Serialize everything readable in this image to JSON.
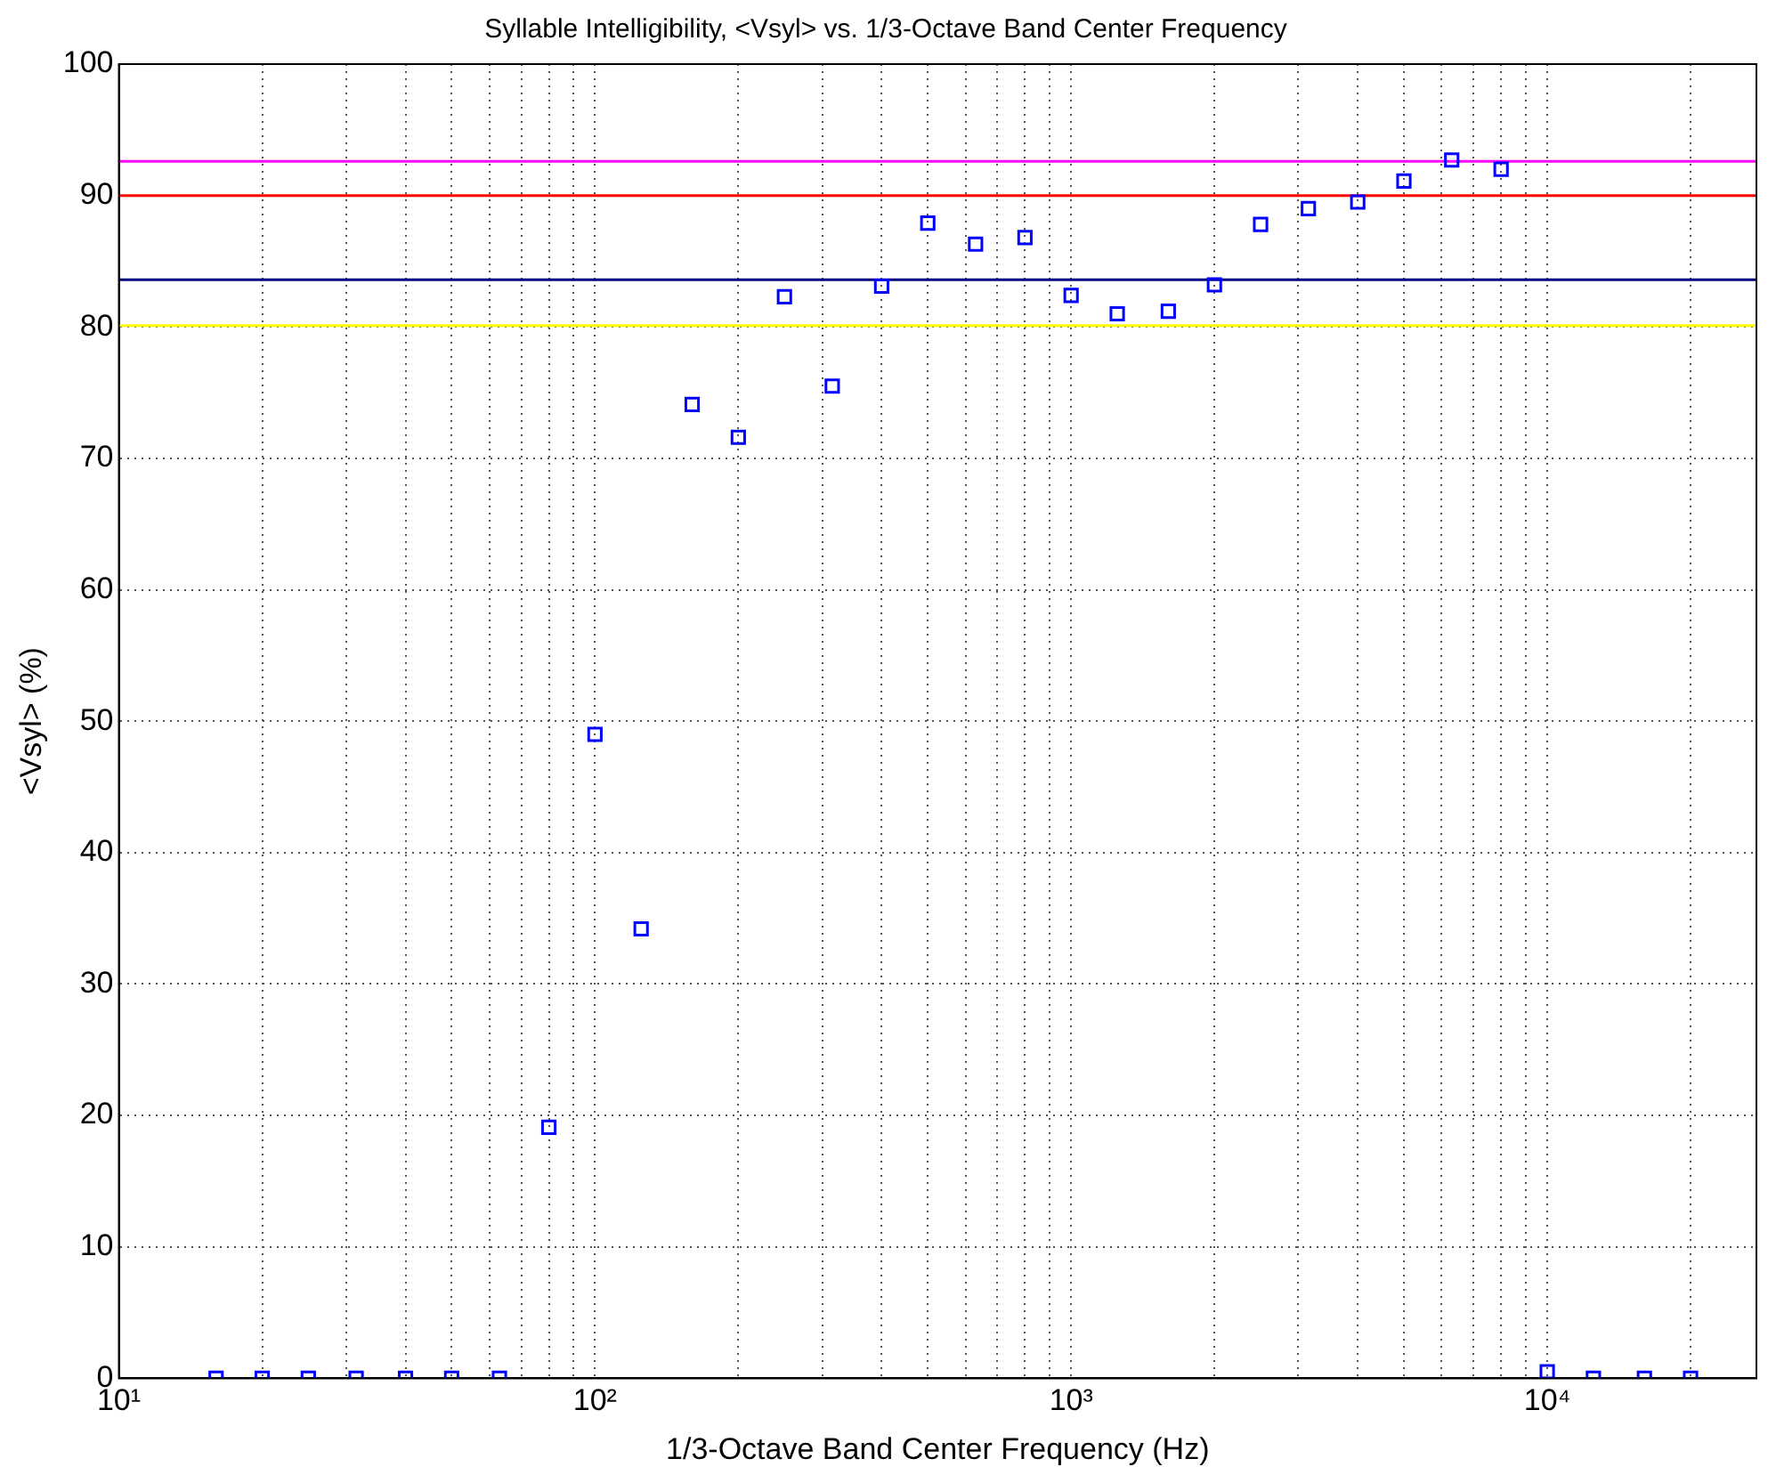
{
  "chart_data": {
    "type": "scatter",
    "title": "Syllable Intelligibility, <Vsyl> vs. 1/3-Octave Band Center Frequency",
    "xlabel": "1/3-Octave Band Center Frequency (Hz)",
    "ylabel": "<Vsyl> (%)",
    "log": "x",
    "grid": true,
    "marker": "square",
    "legend": false,
    "xlim": [
      10,
      27500
    ],
    "xticks": [
      {
        "value": 10,
        "label": "10¹"
      },
      {
        "value": 20,
        "label": null
      },
      {
        "value": 30,
        "label": null
      },
      {
        "value": 40,
        "label": null
      },
      {
        "value": 50,
        "label": null
      },
      {
        "value": 60,
        "label": null
      },
      {
        "value": 70,
        "label": null
      },
      {
        "value": 80,
        "label": null
      },
      {
        "value": 90,
        "label": null
      },
      {
        "value": 100,
        "label": "10²"
      },
      {
        "value": 200,
        "label": null
      },
      {
        "value": 300,
        "label": null
      },
      {
        "value": 400,
        "label": null
      },
      {
        "value": 500,
        "label": null
      },
      {
        "value": 600,
        "label": null
      },
      {
        "value": 700,
        "label": null
      },
      {
        "value": 800,
        "label": null
      },
      {
        "value": 900,
        "label": null
      },
      {
        "value": 1000,
        "label": "10³"
      },
      {
        "value": 2000,
        "label": null
      },
      {
        "value": 3000,
        "label": null
      },
      {
        "value": 4000,
        "label": null
      },
      {
        "value": 5000,
        "label": null
      },
      {
        "value": 6000,
        "label": null
      },
      {
        "value": 7000,
        "label": null
      },
      {
        "value": 8000,
        "label": null
      },
      {
        "value": 9000,
        "label": null
      },
      {
        "value": 10000,
        "label": "10⁴"
      },
      {
        "value": 20000,
        "label": null
      }
    ],
    "ylim": [
      0,
      100
    ],
    "yticks": [
      0,
      10,
      20,
      30,
      40,
      50,
      60,
      70,
      80,
      90,
      100
    ],
    "x": [
      16,
      20,
      25,
      31.5,
      40,
      50,
      63,
      80,
      100,
      125,
      160,
      200,
      250,
      315,
      400,
      500,
      630,
      800,
      1000,
      1250,
      1600,
      2000,
      2500,
      3150,
      4000,
      5000,
      6300,
      8000,
      10000,
      12500,
      16000,
      20000
    ],
    "series": [
      {
        "color": "#0000ff",
        "values": [
          0,
          0,
          0,
          0,
          0,
          0,
          0,
          19.1,
          49.0,
          34.2,
          74.1,
          71.6,
          82.3,
          75.5,
          83.1,
          87.9,
          86.3,
          86.8,
          82.4,
          81.0,
          81.2,
          83.2,
          87.8,
          89.0,
          89.5,
          91.1,
          92.7,
          92.0,
          0.5,
          0,
          0,
          0
        ]
      }
    ],
    "ref_lines": [
      {
        "axis": "y",
        "value": 92.6,
        "color": "#ff00ff"
      },
      {
        "axis": "y",
        "value": 90,
        "color": "#ff0000"
      },
      {
        "axis": "y",
        "value": 83.6,
        "color": "#000080"
      },
      {
        "axis": "y",
        "value": 80.1,
        "color": "#ffff00"
      }
    ]
  }
}
